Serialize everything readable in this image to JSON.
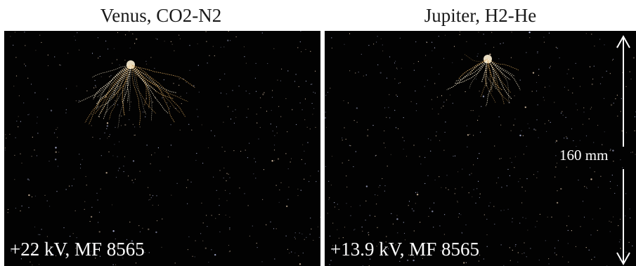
{
  "panels": [
    {
      "title": "Venus, CO2-N2",
      "caption": "+22 kV, MF 8565"
    },
    {
      "title": "Jupiter, H2-He",
      "caption": "+13.9 kV, MF 8565"
    }
  ],
  "scale_bar": {
    "label": "160 mm"
  },
  "colors": {
    "background": "#020202",
    "discharge": "#fff3d6",
    "discharge_glow": "#d9a860",
    "text": "#ffffff"
  }
}
